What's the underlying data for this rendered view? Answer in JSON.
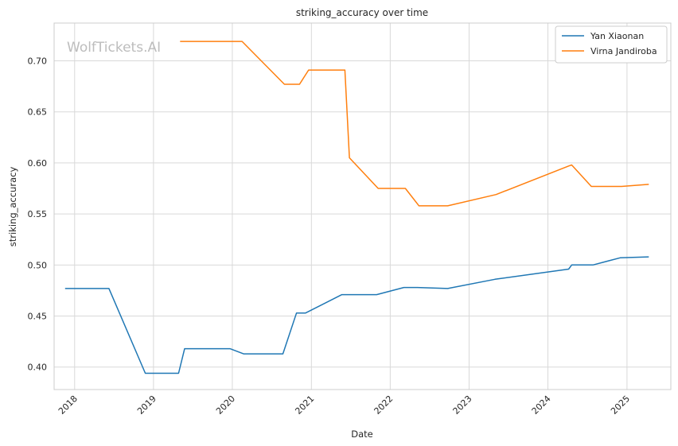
{
  "chart_data": {
    "type": "line",
    "title": "striking_accuracy over time",
    "xlabel": "Date",
    "ylabel": "striking_accuracy",
    "watermark": "WolfTickets.AI",
    "x_ticks": [
      "2018",
      "2019",
      "2020",
      "2021",
      "2022",
      "2023",
      "2024",
      "2025"
    ],
    "y_ticks": [
      "0.40",
      "0.45",
      "0.50",
      "0.55",
      "0.60",
      "0.65",
      "0.70"
    ],
    "ylim": [
      0.378,
      0.737
    ],
    "xlim": [
      "2017-09-28",
      "2025-07-23"
    ],
    "grid": true,
    "legend_position": "top-right",
    "series": [
      {
        "name": "Yan Xiaonan",
        "color": "#1f77b4",
        "points": [
          [
            "2017-11-18",
            0.477
          ],
          [
            "2018-06-09",
            0.477
          ],
          [
            "2018-11-24",
            0.394
          ],
          [
            "2019-04-27",
            0.394
          ],
          [
            "2019-05-25",
            0.418
          ],
          [
            "2019-12-21",
            0.418
          ],
          [
            "2020-02-22",
            0.413
          ],
          [
            "2020-08-22",
            0.413
          ],
          [
            "2020-10-24",
            0.453
          ],
          [
            "2020-12-05",
            0.453
          ],
          [
            "2021-05-22",
            0.471
          ],
          [
            "2021-10-30",
            0.471
          ],
          [
            "2022-03-05",
            0.478
          ],
          [
            "2022-05-07",
            0.478
          ],
          [
            "2022-09-24",
            0.477
          ],
          [
            "2023-05-01",
            0.486
          ],
          [
            "2024-04-06",
            0.496
          ],
          [
            "2024-04-20",
            0.5
          ],
          [
            "2024-07-27",
            0.5
          ],
          [
            "2024-11-30",
            0.507
          ],
          [
            "2025-04-12",
            0.508
          ]
        ]
      },
      {
        "name": "Virna Jandiroba",
        "color": "#ff7f0e",
        "points": [
          [
            "2019-05-04",
            0.719
          ],
          [
            "2020-02-15",
            0.719
          ],
          [
            "2020-08-29",
            0.677
          ],
          [
            "2020-11-07",
            0.677
          ],
          [
            "2020-12-19",
            0.691
          ],
          [
            "2021-06-05",
            0.691
          ],
          [
            "2021-06-26",
            0.605
          ],
          [
            "2021-11-06",
            0.575
          ],
          [
            "2022-03-12",
            0.575
          ],
          [
            "2022-05-14",
            0.558
          ],
          [
            "2022-09-24",
            0.558
          ],
          [
            "2023-05-06",
            0.569
          ],
          [
            "2024-04-06",
            0.597
          ],
          [
            "2024-04-20",
            0.598
          ],
          [
            "2024-07-20",
            0.577
          ],
          [
            "2024-12-07",
            0.577
          ],
          [
            "2025-04-12",
            0.579
          ]
        ]
      }
    ]
  }
}
